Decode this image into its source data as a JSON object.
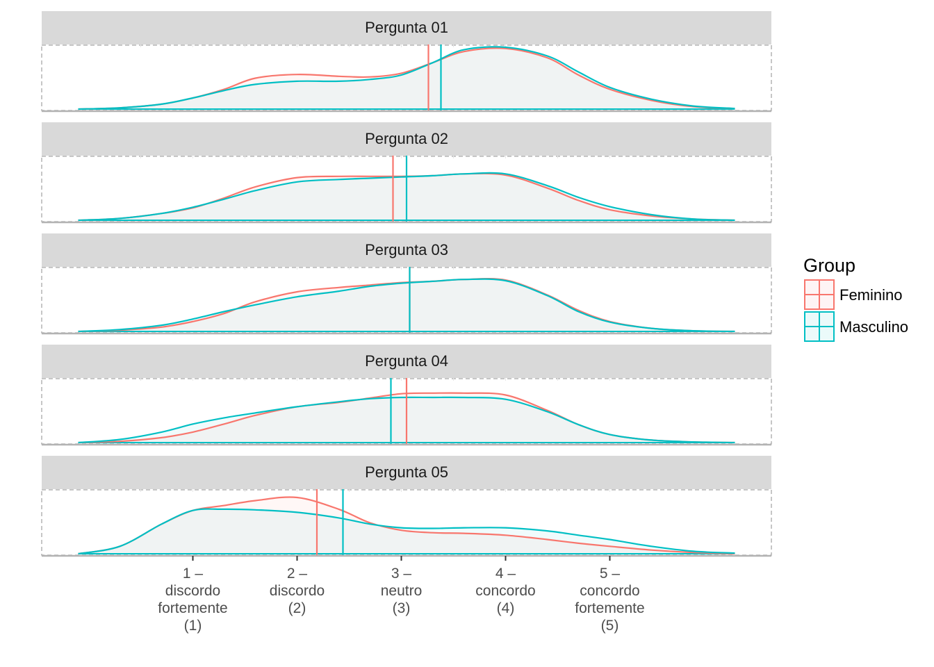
{
  "chart_data": {
    "type": "area",
    "title": "",
    "xlabel": "",
    "ylabel": "",
    "xlim": [
      -0.45,
      6.55
    ],
    "ticks": [
      {
        "x": 1,
        "lines": [
          "1 –",
          "discordo",
          "fortemente",
          "(1)"
        ]
      },
      {
        "x": 2,
        "lines": [
          "2 –",
          "discordo",
          "(2)"
        ]
      },
      {
        "x": 3,
        "lines": [
          "3 –",
          "neutro",
          "(3)"
        ]
      },
      {
        "x": 4,
        "lines": [
          "4 –",
          "concordo",
          "(4)"
        ]
      },
      {
        "x": 5,
        "lines": [
          "5 –",
          "concordo",
          "fortemente",
          "(5)"
        ]
      }
    ],
    "legend": {
      "title": "Group",
      "placement": "right",
      "entries": [
        {
          "name": "Feminino",
          "color": "#f8766d"
        },
        {
          "name": "Masculino",
          "color": "#00bfc4"
        }
      ]
    },
    "grid": false,
    "density_x": [
      -0.1,
      0.3,
      0.7,
      1.0,
      1.3,
      1.6,
      2.0,
      2.4,
      2.7,
      3.0,
      3.3,
      3.6,
      4.0,
      4.4,
      4.7,
      5.0,
      5.4,
      5.8,
      6.2
    ],
    "panels": [
      {
        "strip": "Pergunta 01",
        "ymax": 1.0,
        "series": [
          {
            "name": "Feminino",
            "mean": 3.26,
            "values": [
              0.0,
              0.02,
              0.08,
              0.18,
              0.32,
              0.5,
              0.56,
              0.53,
              0.52,
              0.58,
              0.75,
              0.93,
              0.98,
              0.83,
              0.55,
              0.32,
              0.14,
              0.04,
              0.01
            ]
          },
          {
            "name": "Masculino",
            "mean": 3.38,
            "values": [
              0.0,
              0.02,
              0.08,
              0.18,
              0.3,
              0.4,
              0.45,
              0.45,
              0.48,
              0.55,
              0.75,
              0.96,
              1.0,
              0.86,
              0.6,
              0.35,
              0.16,
              0.05,
              0.01
            ]
          }
        ]
      },
      {
        "strip": "Pergunta 02",
        "ymax": 1.0,
        "series": [
          {
            "name": "Feminino",
            "mean": 2.92,
            "values": [
              0.0,
              0.03,
              0.11,
              0.2,
              0.36,
              0.54,
              0.69,
              0.71,
              0.71,
              0.71,
              0.72,
              0.75,
              0.73,
              0.52,
              0.32,
              0.17,
              0.07,
              0.02,
              0.0
            ]
          },
          {
            "name": "Masculino",
            "mean": 3.05,
            "values": [
              0.0,
              0.03,
              0.11,
              0.21,
              0.34,
              0.48,
              0.62,
              0.66,
              0.68,
              0.7,
              0.72,
              0.75,
              0.75,
              0.56,
              0.37,
              0.22,
              0.09,
              0.02,
              0.0
            ]
          }
        ]
      },
      {
        "strip": "Pergunta 03",
        "ymax": 1.0,
        "series": [
          {
            "name": "Feminino",
            "mean": 3.08,
            "values": [
              0.0,
              0.02,
              0.07,
              0.16,
              0.29,
              0.48,
              0.64,
              0.71,
              0.75,
              0.79,
              0.81,
              0.84,
              0.83,
              0.59,
              0.34,
              0.16,
              0.05,
              0.01,
              0.0
            ]
          },
          {
            "name": "Masculino",
            "mean": 3.08,
            "values": [
              0.0,
              0.03,
              0.1,
              0.2,
              0.32,
              0.43,
              0.56,
              0.65,
              0.73,
              0.78,
              0.81,
              0.84,
              0.82,
              0.58,
              0.32,
              0.15,
              0.05,
              0.01,
              0.0
            ]
          }
        ]
      },
      {
        "strip": "Pergunta 04",
        "ymax": 1.0,
        "series": [
          {
            "name": "Feminino",
            "mean": 3.05,
            "values": [
              0.0,
              0.02,
              0.08,
              0.17,
              0.3,
              0.44,
              0.58,
              0.65,
              0.72,
              0.79,
              0.8,
              0.8,
              0.77,
              0.52,
              0.29,
              0.13,
              0.04,
              0.01,
              0.0
            ]
          },
          {
            "name": "Masculino",
            "mean": 2.9,
            "values": [
              0.0,
              0.05,
              0.17,
              0.3,
              0.4,
              0.48,
              0.58,
              0.66,
              0.71,
              0.73,
              0.73,
              0.73,
              0.7,
              0.5,
              0.29,
              0.13,
              0.04,
              0.01,
              0.0
            ]
          }
        ]
      },
      {
        "strip": "Pergunta 05",
        "ymax": 1.0,
        "series": [
          {
            "name": "Feminino",
            "mean": 2.19,
            "values": [
              0.0,
              0.12,
              0.48,
              0.7,
              0.78,
              0.86,
              0.91,
              0.72,
              0.5,
              0.38,
              0.34,
              0.33,
              0.3,
              0.23,
              0.17,
              0.12,
              0.06,
              0.02,
              0.0
            ]
          },
          {
            "name": "Masculino",
            "mean": 2.44,
            "values": [
              0.0,
              0.12,
              0.48,
              0.7,
              0.72,
              0.71,
              0.67,
              0.58,
              0.48,
              0.42,
              0.41,
              0.42,
              0.42,
              0.37,
              0.3,
              0.23,
              0.12,
              0.04,
              0.01
            ]
          }
        ]
      }
    ]
  }
}
